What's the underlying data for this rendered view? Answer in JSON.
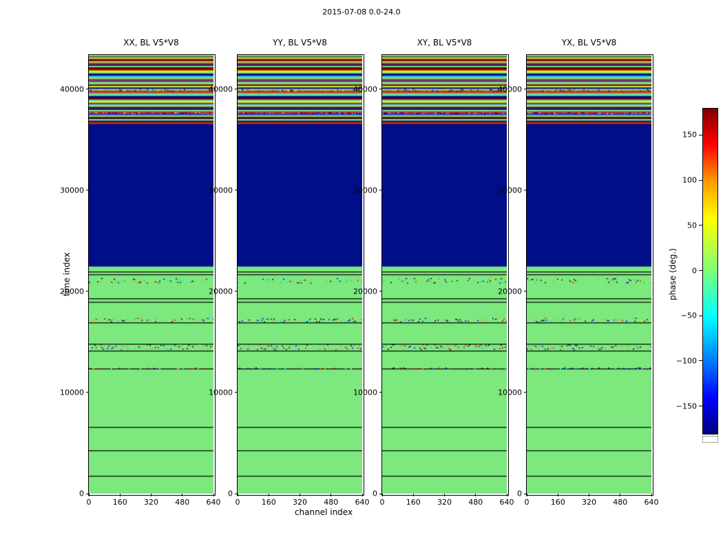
{
  "chart_data": {
    "type": "heatmap",
    "title": "2015-07-08 0.0-24.0",
    "xlabel": "channel index",
    "ylabel": "time index",
    "xlim": [
      0,
      640
    ],
    "ylim": [
      0,
      43400
    ],
    "xticks": [
      0,
      160,
      320,
      480,
      640
    ],
    "yticks": [
      0,
      10000,
      20000,
      30000,
      40000
    ],
    "panels": [
      {
        "key": "xx",
        "title": "XX, BL V5*V8",
        "noise_seed": 12345
      },
      {
        "key": "yy",
        "title": "YY, BL V5*V8",
        "noise_seed": 777001
      },
      {
        "key": "xy",
        "title": "XY, BL V5*V8",
        "noise_seed": 424242
      },
      {
        "key": "yx",
        "title": "YX, BL V5*V8",
        "noise_seed": 90909
      }
    ],
    "colorbar": {
      "label": "phase (deg.)",
      "ticks": [
        "150",
        "100",
        "50",
        "0",
        "−50",
        "−100",
        "−150"
      ],
      "tick_values": [
        150,
        100,
        50,
        0,
        -50,
        -100,
        -150
      ],
      "vmin": -180,
      "vmax": 180,
      "colormap": "jet"
    },
    "colors": {
      "phase_zero_green": "#7ce87e",
      "phase_wrap_navy": "#000f87",
      "line_black": "#000000"
    },
    "regions": [
      {
        "t0": 0,
        "t1": 22500,
        "color": "#7ce87e"
      },
      {
        "t0": 22500,
        "t1": 36600,
        "color": "#000f87"
      }
    ],
    "lines": [
      1800,
      4300,
      6600,
      12400,
      14150,
      14850,
      16950,
      19000,
      19300,
      21700,
      21950
    ],
    "noise_bands": [
      {
        "t0": 12300,
        "t1": 12500,
        "density": 0.3
      },
      {
        "t0": 14200,
        "t1": 14800,
        "density": 0.55
      },
      {
        "t0": 16980,
        "t1": 17400,
        "density": 0.5
      },
      {
        "t0": 20800,
        "t1": 21350,
        "density": 0.55
      },
      {
        "t0": 37550,
        "t1": 37750,
        "density": 0.5
      },
      {
        "t0": 39800,
        "t1": 40050,
        "density": 0.5
      }
    ],
    "noise_palette": [
      "#00008b",
      "#0000ff",
      "#00bfff",
      "#00ffff",
      "#f2e400",
      "#ff8c00",
      "#ff0000",
      "#8b0000",
      "#000000",
      "#2bd42b"
    ],
    "stripes": {
      "t0": 36600,
      "t1": 43400,
      "bands": [
        {
          "w": 2,
          "color": "#7ce87e"
        },
        {
          "w": 1,
          "color": "#000000"
        },
        {
          "w": 2,
          "color": "#c6e84c"
        },
        {
          "w": 3,
          "color": "#8e0500"
        },
        {
          "w": 2,
          "color": "#7ce87e"
        },
        {
          "w": 2,
          "color": "#dd2a00"
        },
        {
          "w": 2,
          "color": "#000f87"
        },
        {
          "w": 2,
          "color": "#7ce87e"
        },
        {
          "w": 1,
          "color": "#000000"
        },
        {
          "w": 3,
          "color": "#8e0500"
        },
        {
          "w": 2,
          "color": "#f2e400"
        },
        {
          "w": 2,
          "color": "#7ce87e"
        },
        {
          "w": 3,
          "color": "#000f87"
        },
        {
          "w": 2,
          "color": "#2ec8dc"
        },
        {
          "w": 2,
          "color": "#7ce87e"
        },
        {
          "w": 2,
          "color": "#dd2a00"
        },
        {
          "w": 2,
          "color": "#1e3cd2"
        },
        {
          "w": 3,
          "color": "#7ce87e"
        },
        {
          "w": 2,
          "color": "#8e0500"
        },
        {
          "w": 2,
          "color": "#c6e84c"
        },
        {
          "w": 2,
          "color": "#000f87"
        },
        {
          "w": 2,
          "color": "#7ce87e"
        },
        {
          "w": 3,
          "color": "#dd2a00"
        },
        {
          "w": 2,
          "color": "#2ec8dc"
        },
        {
          "w": 2,
          "color": "#7ce87e"
        },
        {
          "w": 3,
          "color": "#000f87"
        },
        {
          "w": 2,
          "color": "#8e0500"
        },
        {
          "w": 2,
          "color": "#7ce87e"
        },
        {
          "w": 2,
          "color": "#f2e400"
        },
        {
          "w": 2,
          "color": "#1e3cd2"
        },
        {
          "w": 3,
          "color": "#7ce87e"
        },
        {
          "w": 2,
          "color": "#8e0500"
        },
        {
          "w": 2,
          "color": "#000f87"
        },
        {
          "w": 2,
          "color": "#7ce87e"
        },
        {
          "w": 2,
          "color": "#dd2a00"
        },
        {
          "w": 3,
          "color": "#1e3cd2"
        },
        {
          "w": 2,
          "color": "#7ce87e"
        },
        {
          "w": 2,
          "color": "#8e0500"
        },
        {
          "w": 1,
          "color": "#000000"
        },
        {
          "w": 2,
          "color": "#7ce87e"
        },
        {
          "w": 2,
          "color": "#000f87"
        },
        {
          "w": 2,
          "color": "#dd2a00"
        }
      ]
    }
  }
}
